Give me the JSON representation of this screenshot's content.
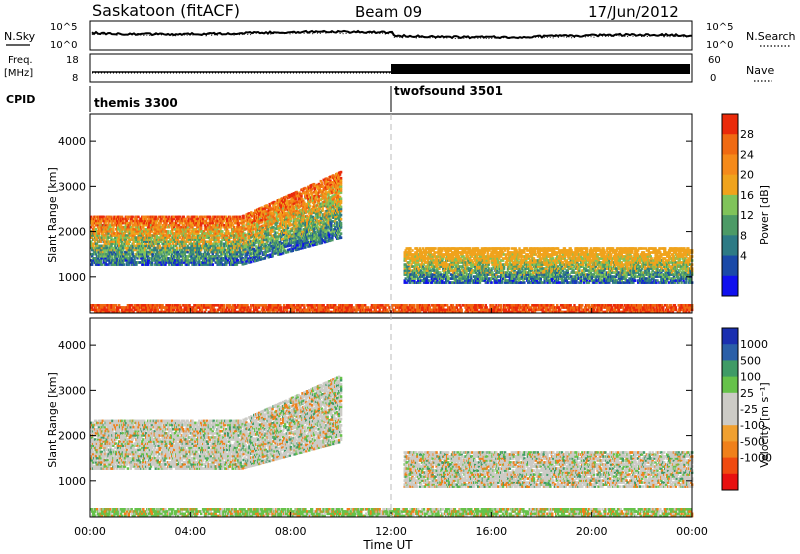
{
  "header": {
    "station": "Saskatoon (fitACF)",
    "beam": "Beam 09",
    "date": "17/Jun/2012"
  },
  "noise_panel": {
    "left_label": "N.Sky",
    "right_label": "N.Search",
    "left_ticks": [
      "10^5",
      "10^0"
    ],
    "right_ticks": [
      "10^5",
      "10^0"
    ]
  },
  "freq_panel": {
    "left_label_1": "Freq.",
    "left_label_2": "[MHz]",
    "right_label": "Nave",
    "left_ticks": [
      "18",
      "8"
    ],
    "right_ticks": [
      "60",
      "0"
    ]
  },
  "cpid_panel": {
    "label": "CPID",
    "program_1": "themis 3300",
    "program_2": "twofsound 3501",
    "switch_time_h": 12.0
  },
  "time_axis": {
    "label": "Time UT",
    "ticks": [
      "00:00",
      "04:00",
      "08:00",
      "12:00",
      "16:00",
      "20:00",
      "00:00"
    ],
    "range_h": [
      0,
      24
    ]
  },
  "colors": {
    "power_scale": [
      "#1010ee",
      "#1a49a8",
      "#2d7a85",
      "#4c9a66",
      "#80c35a",
      "#f0a31c",
      "#f58a1a",
      "#f06a12",
      "#ea2a0a"
    ],
    "velocity_scale": [
      "#e81010",
      "#f04a10",
      "#f0801a",
      "#f0a030",
      "#cccbc6",
      "#cccbc6",
      "#66c24a",
      "#3f9b66",
      "#2a5fa8",
      "#1a2fb0"
    ]
  },
  "chart_data": [
    {
      "type": "heatmap",
      "panel": "power",
      "ylabel": "Slant Range [km]",
      "ylim": [
        200,
        4600
      ],
      "yticks": [
        "1000",
        "2000",
        "3000",
        "4000"
      ],
      "colorbar": {
        "label": "Power [dB]",
        "ticks": [
          "28",
          "24",
          "20",
          "16",
          "12",
          "8",
          "4"
        ]
      },
      "regions": [
        {
          "name": "morning echo band",
          "t": [
            0.0,
            10.0
          ],
          "range_km": [
            1300,
            2400
          ],
          "power_db": 20
        },
        {
          "name": "near range band",
          "t": [
            0.0,
            24.0
          ],
          "range_km": [
            250,
            450
          ],
          "power_db": 24
        },
        {
          "name": "evening band",
          "t": [
            12.5,
            24.0
          ],
          "range_km": [
            900,
            1700
          ],
          "power_db": 12
        }
      ]
    },
    {
      "type": "heatmap",
      "panel": "velocity",
      "ylabel": "Slant Range [km]",
      "ylim": [
        200,
        4600
      ],
      "yticks": [
        "1000",
        "2000",
        "3000",
        "4000"
      ],
      "colorbar": {
        "label": "Velocity [m s⁻¹]",
        "ticks": [
          "1000",
          "500",
          "100",
          "25",
          "-25",
          "-100",
          "-500",
          "-1000"
        ]
      },
      "regions": [
        {
          "name": "morning echo band",
          "t": [
            0.0,
            10.0
          ],
          "range_km": [
            1300,
            2400
          ],
          "velocity": 0
        },
        {
          "name": "near range band",
          "t": [
            0.0,
            24.0
          ],
          "range_km": [
            250,
            450
          ],
          "velocity": 50
        },
        {
          "name": "evening band",
          "t": [
            12.5,
            24.0
          ],
          "range_km": [
            900,
            1700
          ],
          "velocity": -25
        }
      ]
    }
  ]
}
